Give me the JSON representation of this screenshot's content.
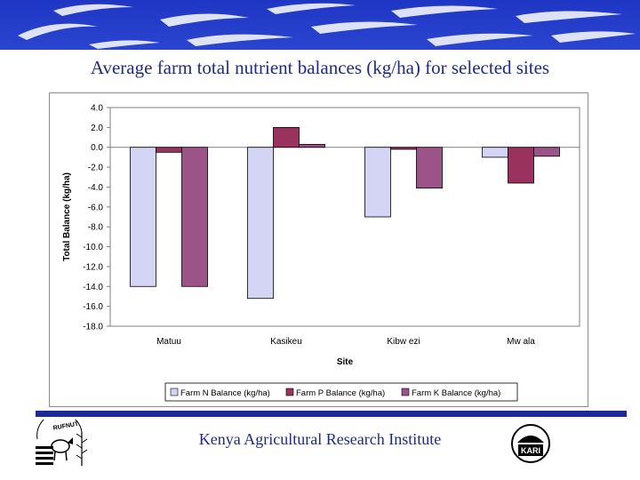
{
  "slide": {
    "title": "Average farm total nutrient balances (kg/ha) for selected sites",
    "footer": "Kenya Agricultural Research Institute",
    "left_logo_text": "RUFNUT",
    "right_logo_text": "KARI"
  },
  "colors": {
    "banner": "#2338b8",
    "title": "#1e2a8c",
    "rule": "#1c2a99",
    "plot_bg": "#c0c0c0",
    "series_N": "#d4d4f5",
    "series_P": "#99335e",
    "series_K": "#9c5488"
  },
  "chart_data": {
    "type": "bar",
    "title": "",
    "xlabel": "Site",
    "ylabel": "Total Balance (kg/ha)",
    "ylim": [
      -18,
      4
    ],
    "ytick_step": 2,
    "ytick_labels": [
      "4.0",
      "2.0",
      "0.0",
      "-2.0",
      "-4.0",
      "-6.0",
      "-8.0",
      "-10.0",
      "-12.0",
      "-14.0",
      "-16.0",
      "-18.0"
    ],
    "categories": [
      "Matuu",
      "Kasikeu",
      "Kibw ezi",
      "Mw ala"
    ],
    "series": [
      {
        "name": "Farm N Balance (kg/ha)",
        "values": [
          -14.0,
          -15.2,
          -7.0,
          -1.0
        ]
      },
      {
        "name": "Farm P Balance (kg/ha)",
        "values": [
          -0.5,
          2.0,
          -0.2,
          -3.6
        ]
      },
      {
        "name": "Farm K Balance (kg/ha)",
        "values": [
          -14.0,
          0.3,
          -4.1,
          -0.9
        ]
      }
    ],
    "grid": false,
    "legend": "bottom"
  }
}
